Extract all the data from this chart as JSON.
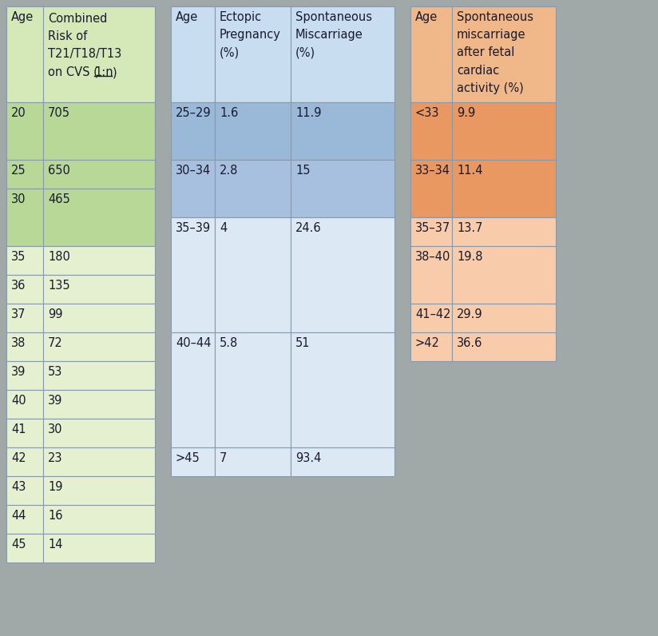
{
  "fig_width": 8.24,
  "fig_height": 7.96,
  "bg_color": "#a0a8a8",
  "table1_bg_header": "#d4e8b8",
  "table1_bg_dark": "#b8d898",
  "table1_bg_light": "#e4f0d0",
  "table1_rows": [
    [
      "20",
      "705"
    ],
    [
      "25",
      "650"
    ],
    [
      "30",
      "465"
    ],
    [
      "35",
      "180"
    ],
    [
      "36",
      "135"
    ],
    [
      "37",
      "99"
    ],
    [
      "38",
      "72"
    ],
    [
      "39",
      "53"
    ],
    [
      "40",
      "39"
    ],
    [
      "41",
      "30"
    ],
    [
      "42",
      "23"
    ],
    [
      "43",
      "19"
    ],
    [
      "44",
      "16"
    ],
    [
      "45",
      "14"
    ]
  ],
  "table1_row_heights": [
    72,
    36,
    72,
    36,
    36,
    36,
    36,
    36,
    36,
    36,
    36,
    36,
    36,
    36
  ],
  "table2_bg_header": "#c8ddf0",
  "table2_bg_dark": "#9ab8d8",
  "table2_bg_mid": "#a8c0e0",
  "table2_bg_light": "#dce8f4",
  "table2_rows": [
    [
      "25–29",
      "1.6",
      "11.9"
    ],
    [
      "30–34",
      "2.8",
      "15"
    ],
    [
      "35–39",
      "4",
      "24.6"
    ],
    [
      "40–44",
      "5.8",
      "51"
    ],
    [
      ">45",
      "7",
      "93.4"
    ]
  ],
  "table2_row_heights": [
    72,
    72,
    144,
    144,
    36
  ],
  "table3_bg_header": "#f0b888",
  "table3_bg_dark": "#e89860",
  "table3_bg_light": "#f8ccaa",
  "table3_rows": [
    [
      "<33",
      "9.9"
    ],
    [
      "33–34",
      "11.4"
    ],
    [
      "35–37",
      "13.7"
    ],
    [
      "38–40",
      "19.8"
    ],
    [
      "41–42",
      "29.9"
    ],
    [
      ">42",
      "36.6"
    ]
  ],
  "table3_row_heights": [
    72,
    72,
    36,
    72,
    36,
    36
  ],
  "text_color": "#1a1a2e",
  "border_color": "#8899aa",
  "fontsize": 10.5
}
